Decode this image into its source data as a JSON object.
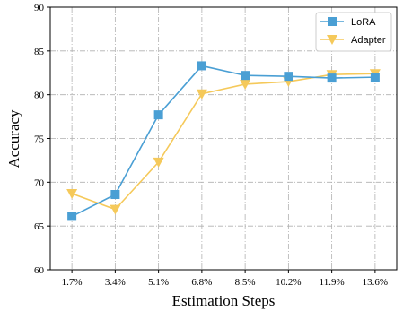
{
  "chart_data": {
    "type": "line",
    "categories": [
      "1.7%",
      "3.4%",
      "5.1%",
      "6.8%",
      "8.5%",
      "10.2%",
      "11.9%",
      "13.6%"
    ],
    "series": [
      {
        "name": "LoRA",
        "values": [
          66.1,
          68.6,
          77.7,
          83.3,
          82.2,
          82.1,
          81.9,
          82.0
        ],
        "color": "#4a9fd4",
        "marker": "square"
      },
      {
        "name": "Adapter",
        "values": [
          68.7,
          66.9,
          72.3,
          80.1,
          81.2,
          81.5,
          82.3,
          82.4
        ],
        "color": "#f5c95a",
        "marker": "triangle-down"
      }
    ],
    "xlabel": "Estimation Steps",
    "ylabel": "Accuracy",
    "ylim": [
      60,
      90
    ],
    "yticks": [
      60,
      65,
      70,
      75,
      80,
      85,
      90
    ],
    "grid": true,
    "legend_position": "top-right"
  }
}
